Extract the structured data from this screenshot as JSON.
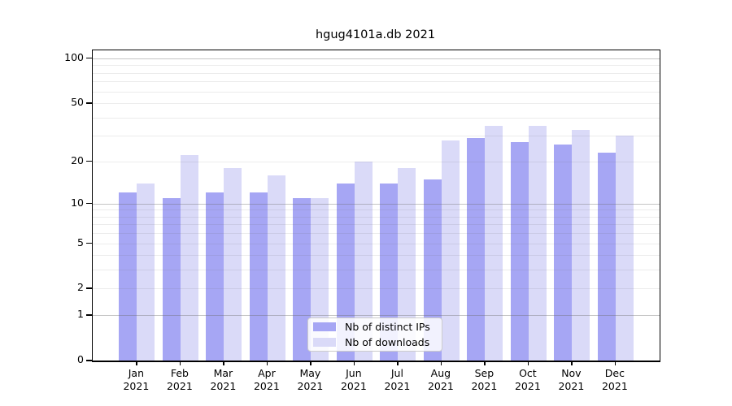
{
  "chart_data": {
    "type": "bar",
    "title": "hgug4101a.db 2021",
    "months": [
      "Jan",
      "Feb",
      "Mar",
      "Apr",
      "May",
      "Jun",
      "Jul",
      "Aug",
      "Sep",
      "Oct",
      "Nov",
      "Dec"
    ],
    "year_label": "2021",
    "series": [
      {
        "name": "Nb of distinct IPs",
        "color": "#a6a6f4",
        "values": [
          12,
          11,
          12,
          12,
          11,
          14,
          14,
          15,
          29,
          27,
          26,
          23
        ]
      },
      {
        "name": "Nb of downloads",
        "color": "#dadaf8",
        "values": [
          14,
          22,
          18,
          16,
          11,
          20,
          18,
          28,
          35,
          35,
          33,
          30
        ]
      }
    ],
    "y_axis": {
      "scale": "log10(value+1)",
      "ticks": [
        0,
        1,
        2,
        5,
        10,
        20,
        50,
        100
      ],
      "range": [
        0,
        100
      ]
    },
    "grid": {
      "minor_values": [
        2,
        3,
        4,
        5,
        6,
        7,
        8,
        9,
        20,
        30,
        40,
        50,
        60,
        70,
        80,
        90
      ],
      "major_values": [
        1,
        10,
        100
      ],
      "minor_color": "rgba(110,110,110,0.13)",
      "major_color": "rgba(110,110,110,0.40)"
    },
    "legend": {
      "position": "bottom-center",
      "entries": [
        "Nb of distinct IPs",
        "Nb of downloads"
      ]
    }
  }
}
